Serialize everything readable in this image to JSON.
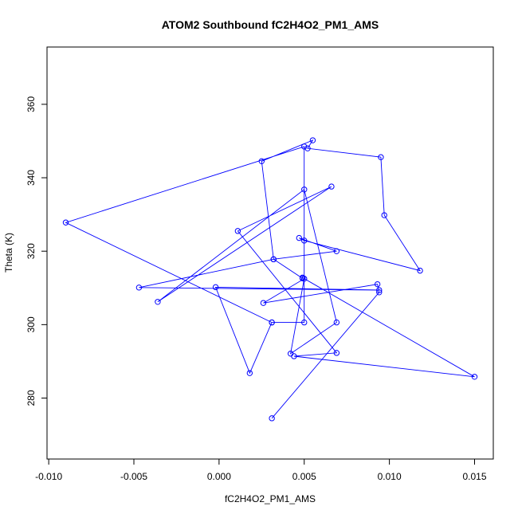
{
  "chart_data": {
    "type": "line",
    "title": "ATOM2 Southbound fC2H4O2_PM1_AMS",
    "xlabel": "fC2H4O2_PM1_AMS",
    "ylabel": "Theta (K)",
    "xlim": [
      -0.0101,
      0.0161
    ],
    "ylim": [
      263.4,
      375.6
    ],
    "x_ticks": [
      -0.01,
      -0.005,
      0.0,
      0.005,
      0.01,
      0.015
    ],
    "x_tick_labels": [
      "-0.010",
      "-0.005",
      "0.000",
      "0.005",
      "0.010",
      "0.015"
    ],
    "y_ticks": [
      280,
      300,
      320,
      340,
      360
    ],
    "y_tick_labels": [
      "280",
      "300",
      "320",
      "340",
      "360"
    ],
    "grid": false,
    "marker": "open-circle",
    "series": [
      {
        "color": "#0000ff",
        "x": [
          0.0031,
          0.0094,
          0.0093,
          0.0026,
          0.005,
          0.0042,
          0.0069,
          0.005,
          -0.0036,
          0.0066,
          0.0011,
          0.0069,
          0.0044,
          0.015,
          0.0049,
          0.0049,
          0.0032,
          0.0025,
          0.0055,
          0.0052,
          0.0095,
          0.0097,
          0.0118,
          0.005,
          0.0047,
          0.0069,
          0.0032,
          -0.0047,
          0.0094,
          -0.0002,
          0.0018,
          0.0031,
          0.005,
          0.005,
          -0.009,
          0.0031
        ],
        "y": [
          274.5,
          308.8,
          311.0,
          305.9,
          312.5,
          292.1,
          300.6,
          336.8,
          306.2,
          337.6,
          325.5,
          292.3,
          291.4,
          285.8,
          312.8,
          312.6,
          317.8,
          344.5,
          350.2,
          348.0,
          345.6,
          329.8,
          314.7,
          322.9,
          323.6,
          320.0,
          317.8,
          310.1,
          309.4,
          310.2,
          286.8,
          300.6,
          300.6,
          348.5,
          327.8,
          300.6
        ]
      }
    ]
  }
}
